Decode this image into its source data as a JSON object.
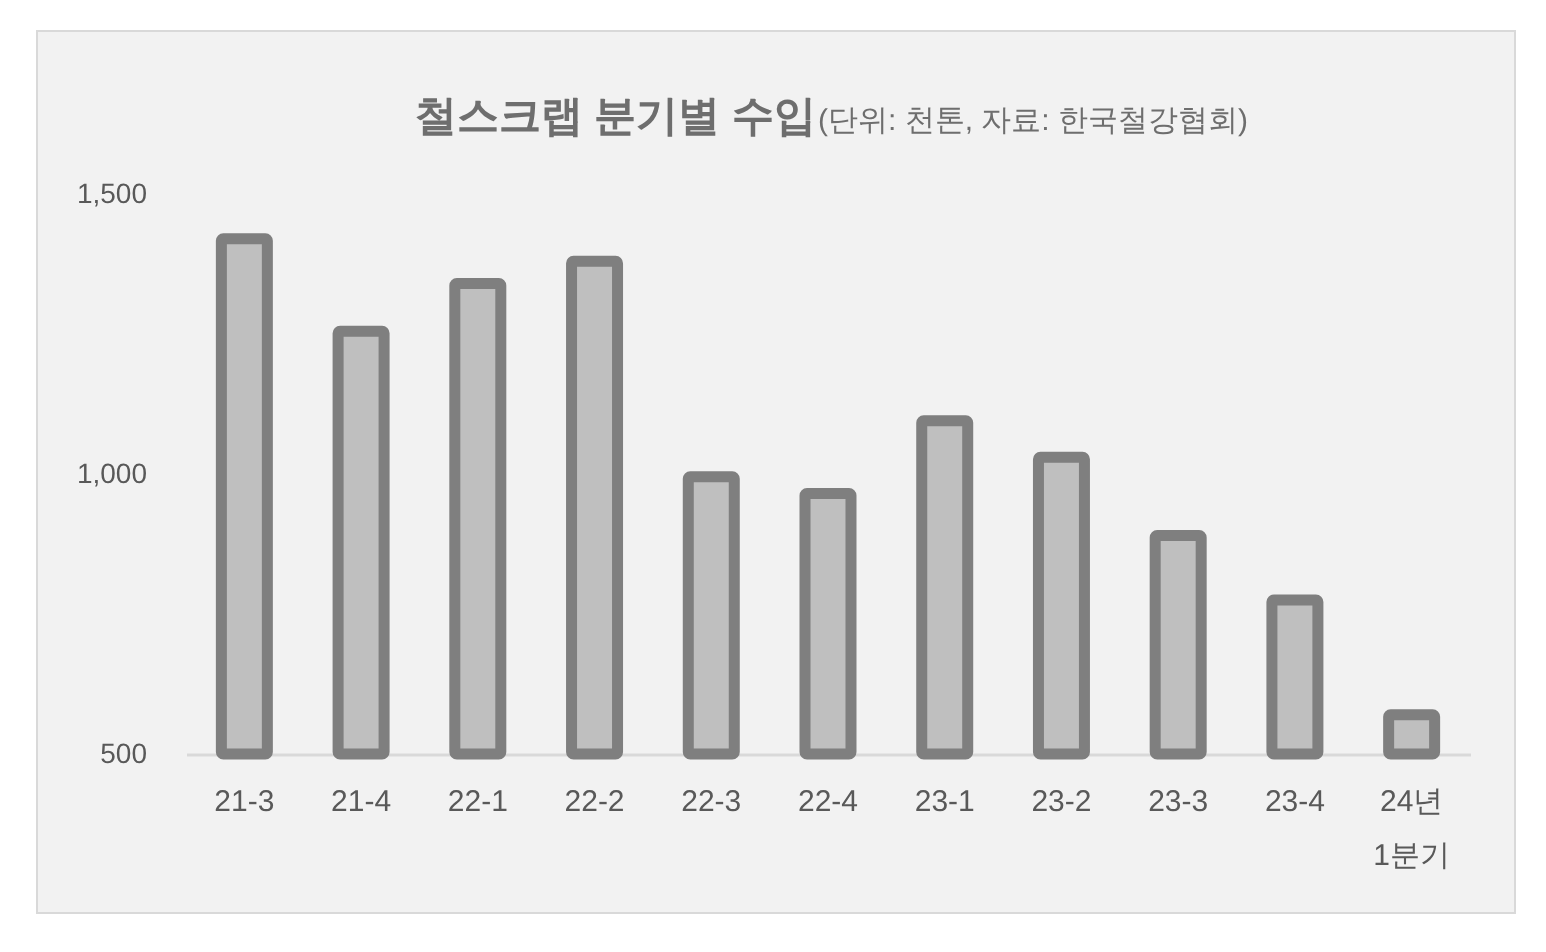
{
  "chart_data": {
    "type": "bar",
    "title": "철스크랩 분기별 수입",
    "subtitle": "(단위: 천톤, 자료: 한국철강협회)",
    "categories": [
      "21-3",
      "21-4",
      "22-1",
      "22-2",
      "22-3",
      "22-4",
      "23-1",
      "23-2",
      "23-3",
      "23-4",
      "24년 1분기"
    ],
    "values": [
      1420,
      1255,
      1340,
      1380,
      995,
      965,
      1095,
      1030,
      890,
      775,
      570
    ],
    "color": "#bfbfbf",
    "ylim": [
      500,
      1500
    ],
    "yticks": [
      500,
      {
        "value": 1000,
        "label": "1,000"
      },
      {
        "value": 1500,
        "label": "1,500"
      }
    ]
  }
}
